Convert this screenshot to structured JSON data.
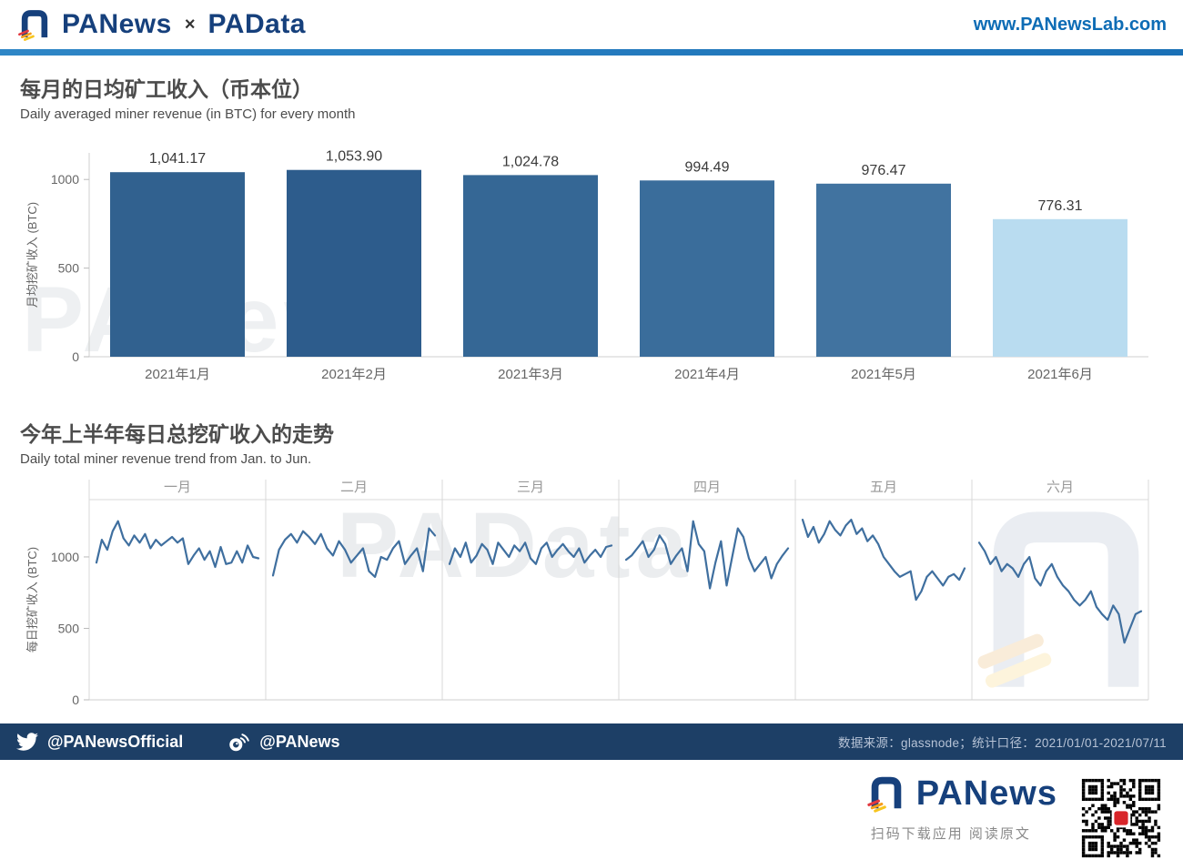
{
  "header": {
    "brand1": "PANews",
    "separator": "×",
    "brand2": "PAData",
    "site": "www.PANewsLab.com"
  },
  "chart1": {
    "title": "每月的日均矿工收入（币本位）",
    "subtitle": "Daily averaged miner revenue (in BTC) for every month"
  },
  "chart2": {
    "title": "今年上半年每日总挖矿收入的走势",
    "subtitle": "Daily total miner revenue trend from Jan. to Jun."
  },
  "watermarks": {
    "chart1": "PANews",
    "chart2": "PAData"
  },
  "footer": {
    "twitter_handle": "@PANewsOfficial",
    "weibo_handle": "@PANews",
    "source": "数据来源：glassnode；统计口径：2021/01/01-2021/07/11"
  },
  "bottom": {
    "brand": "PANews",
    "caption": "扫码下载应用 阅读原文"
  },
  "chart_data": [
    {
      "type": "bar",
      "title": "每月的日均矿工收入（币本位）",
      "subtitle": "Daily averaged miner revenue (in BTC) for every month",
      "categories": [
        "2021年1月",
        "2021年2月",
        "2021年3月",
        "2021年4月",
        "2021年5月",
        "2021年6月"
      ],
      "values": [
        1041.17,
        1053.9,
        1024.78,
        994.49,
        976.47,
        776.31
      ],
      "value_labels": [
        "1,041.17",
        "1,053.90",
        "1,024.78",
        "994.49",
        "976.47",
        "776.31"
      ],
      "bar_colors": [
        "#31618f",
        "#2d5c8c",
        "#356795",
        "#3a6d9b",
        "#4173a0",
        "#b9dcf0"
      ],
      "ylabel": "月均挖矿收入 (BTC)",
      "yticks": [
        0,
        500,
        1000
      ],
      "ylim": [
        0,
        1150
      ]
    },
    {
      "type": "line",
      "title": "今年上半年每日总挖矿收入的走势",
      "subtitle": "Daily total miner revenue trend from Jan. to Jun.",
      "ylabel": "每日挖矿收入 (BTC)",
      "yticks": [
        0,
        500,
        1000
      ],
      "ylim": [
        0,
        1350
      ],
      "line_color": "#3f6f9f",
      "series": [
        {
          "name": "一月",
          "values": [
            960,
            1120,
            1050,
            1180,
            1250,
            1130,
            1080,
            1150,
            1100,
            1160,
            1060,
            1120,
            1080,
            1110,
            1140,
            1100,
            1130,
            950,
            1010,
            1060,
            980,
            1040,
            930,
            1070,
            950,
            960,
            1040,
            960,
            1080,
            1000,
            990
          ]
        },
        {
          "name": "二月",
          "values": [
            870,
            1050,
            1120,
            1160,
            1100,
            1180,
            1140,
            1090,
            1160,
            1060,
            1010,
            1110,
            1050,
            960,
            1010,
            1060,
            900,
            860,
            1000,
            980,
            1060,
            1110,
            950,
            1010,
            1060,
            900,
            1200,
            1150
          ]
        },
        {
          "name": "三月",
          "values": [
            950,
            1060,
            1000,
            1100,
            960,
            1010,
            1090,
            1050,
            950,
            1100,
            1050,
            1000,
            1080,
            1040,
            1100,
            990,
            950,
            1060,
            1100,
            1000,
            1050,
            1090,
            1040,
            1000,
            1060,
            960,
            1010,
            1050,
            1000,
            1070,
            1080
          ]
        },
        {
          "name": "四月",
          "values": [
            980,
            1010,
            1060,
            1110,
            1000,
            1050,
            1150,
            1090,
            950,
            1010,
            1060,
            900,
            1250,
            1090,
            1040,
            780,
            960,
            1110,
            800,
            1000,
            1200,
            1140,
            990,
            900,
            950,
            1000,
            850,
            950,
            1010,
            1060
          ]
        },
        {
          "name": "五月",
          "values": [
            1260,
            1140,
            1210,
            1100,
            1160,
            1250,
            1190,
            1150,
            1220,
            1260,
            1160,
            1200,
            1110,
            1150,
            1090,
            1000,
            950,
            900,
            860,
            880,
            900,
            700,
            760,
            860,
            900,
            850,
            800,
            860,
            880,
            840,
            920
          ]
        },
        {
          "name": "六月",
          "values": [
            1100,
            1040,
            950,
            1000,
            900,
            950,
            920,
            860,
            950,
            1000,
            850,
            800,
            900,
            950,
            860,
            800,
            760,
            700,
            660,
            700,
            760,
            650,
            600,
            560,
            660,
            600,
            400,
            500,
            600,
            620
          ]
        }
      ]
    }
  ]
}
